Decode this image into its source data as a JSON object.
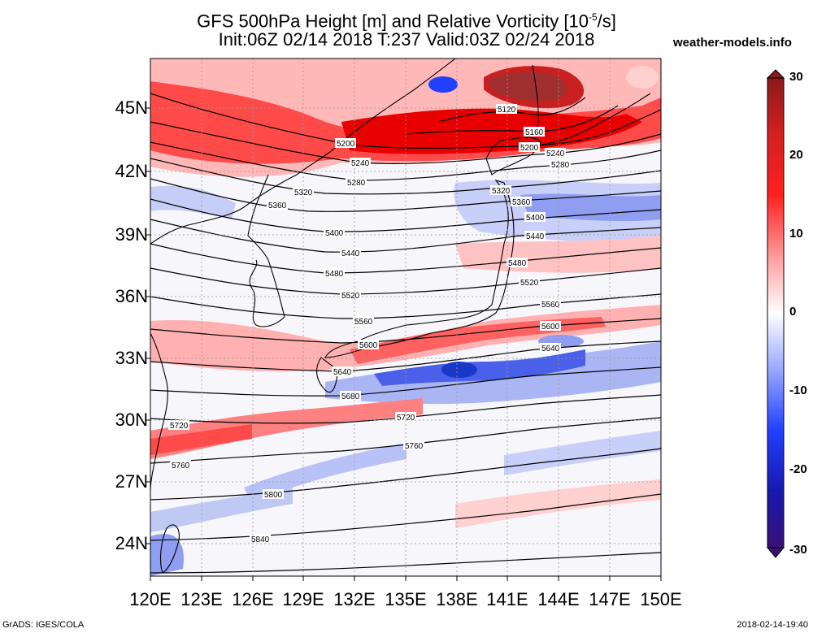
{
  "title_line1": "GFS 500hPa Height [m] and Relative Vorticity [10",
  "title_exp": "-5",
  "title_line1_end": "/s]",
  "title_line2": "Init:06Z 02/14 2018 T:237 Valid:03Z 02/24 2018",
  "brand": "weather-models.info",
  "credit_left": "GrADS: IGES/COLA",
  "credit_right": "2018-02-14-19:40",
  "lat_labels": [
    "45N",
    "42N",
    "39N",
    "36N",
    "33N",
    "30N",
    "27N",
    "24N"
  ],
  "lon_labels": [
    "120E",
    "123E",
    "126E",
    "129E",
    "132E",
    "135E",
    "138E",
    "141E",
    "144E",
    "147E",
    "150E"
  ],
  "colorbar_labels": [
    "30",
    "20",
    "10",
    "0",
    "-10",
    "-20",
    "-30"
  ],
  "contours": [
    {
      "value": "5120",
      "label": "5120"
    },
    {
      "value": "5160",
      "label": "5160"
    },
    {
      "value": "5200",
      "label": "5200"
    },
    {
      "value": "5240",
      "label": "5240"
    },
    {
      "value": "5280",
      "label": "5280"
    },
    {
      "value": "5320",
      "label": "5320"
    },
    {
      "value": "5360",
      "label": "5360"
    },
    {
      "value": "5400",
      "label": "5400"
    },
    {
      "value": "5440",
      "label": "5440"
    },
    {
      "value": "5480",
      "label": "5480"
    },
    {
      "value": "5520",
      "label": "5520"
    },
    {
      "value": "5560",
      "label": "5560"
    },
    {
      "value": "5600",
      "label": "5600"
    },
    {
      "value": "5640",
      "label": "5640"
    },
    {
      "value": "5680",
      "label": "5680"
    },
    {
      "value": "5720",
      "label": "5720"
    },
    {
      "value": "5760",
      "label": "5760"
    },
    {
      "value": "5800",
      "label": "5800"
    },
    {
      "value": "5840",
      "label": "5840"
    }
  ],
  "colors": {
    "positive": "#e00000",
    "negative": "#1030d0",
    "zero": "#ffffff"
  }
}
